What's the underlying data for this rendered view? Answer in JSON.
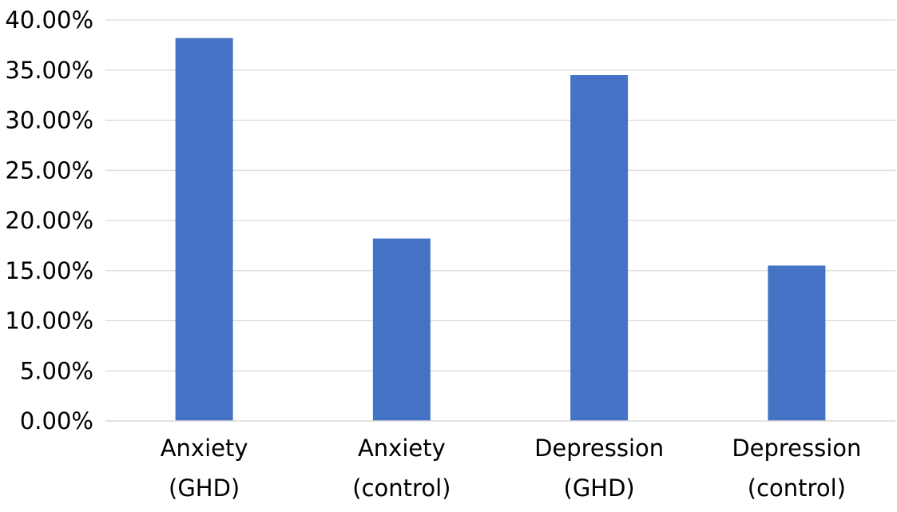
{
  "chart_data": {
    "type": "bar",
    "categories": [
      [
        "Anxiety",
        "(GHD)"
      ],
      [
        "Anxiety",
        "(control)"
      ],
      [
        "Depression",
        "(GHD)"
      ],
      [
        "Depression",
        "(control)"
      ]
    ],
    "values": [
      38.2,
      18.2,
      34.5,
      15.5
    ],
    "value_unit": "%",
    "ylim": [
      0,
      40
    ],
    "yticks": [
      "0.00%",
      "5.00%",
      "10.00%",
      "15.00%",
      "20.00%",
      "25.00%",
      "30.00%",
      "35.00%",
      "40.00%"
    ],
    "ytick_values": [
      0,
      5,
      10,
      15,
      20,
      25,
      30,
      35,
      40
    ],
    "grid": true,
    "legend": "none",
    "bar_color": "#4472C4",
    "grid_color": "#D9D9D9"
  }
}
